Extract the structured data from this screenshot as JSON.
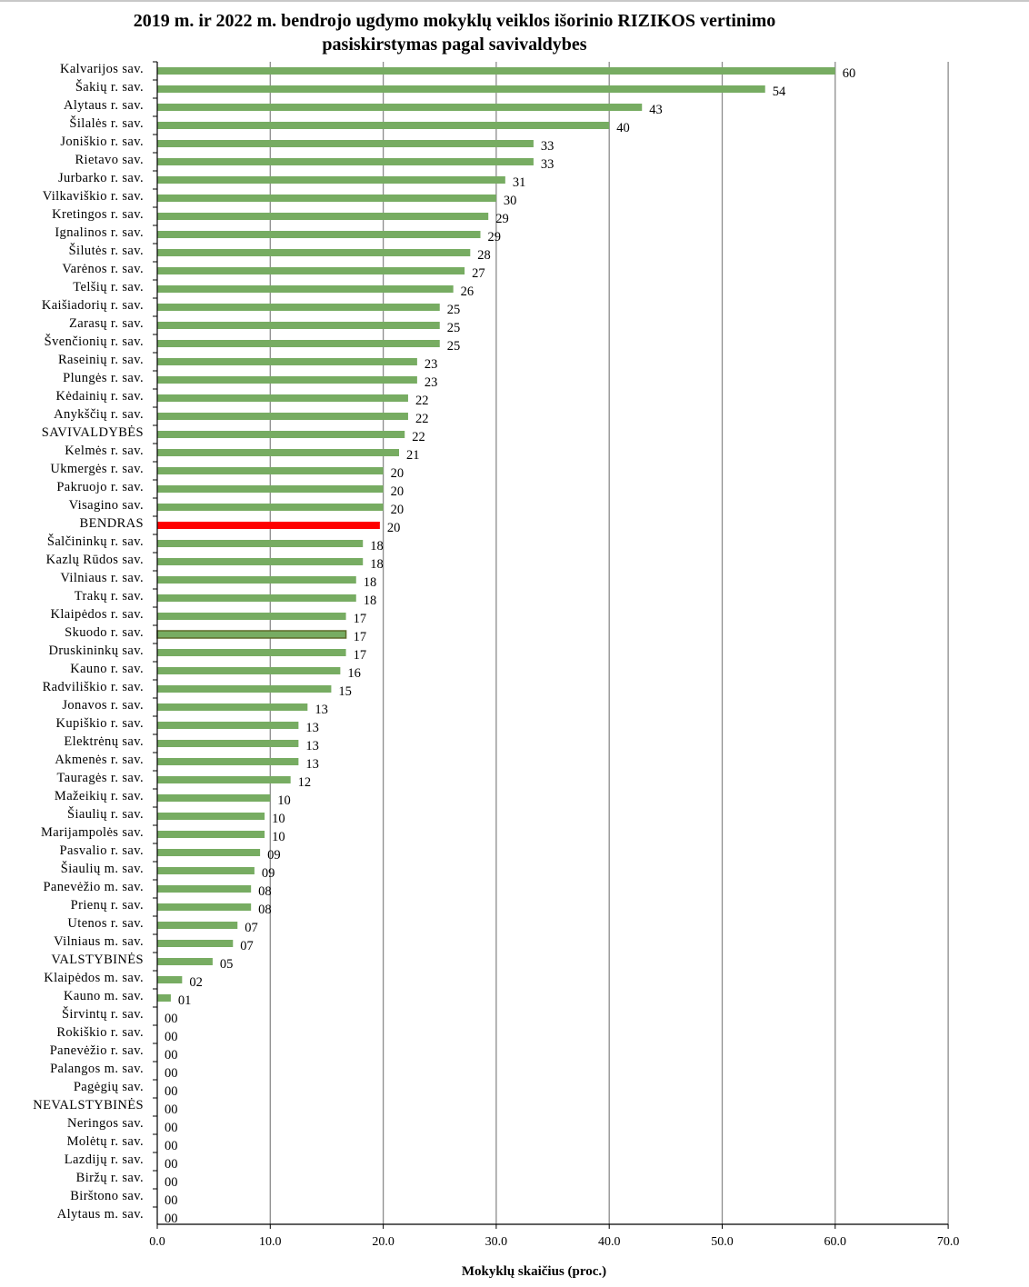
{
  "chart_data": {
    "type": "bar",
    "orientation": "horizontal",
    "title_line1": "2019 m. ir 2022 m. bendrojo ugdymo mokyklų veiklos išorinio RIZIKOS vertinimo",
    "title_line2": "pasiskirstymas pagal savivaldybes",
    "xlabel": "Mokyklų skaičius (proc.)",
    "ylabel": "",
    "xlim": [
      0,
      70
    ],
    "x_ticks": [
      "0.0",
      "10.0",
      "20.0",
      "30.0",
      "40.0",
      "50.0",
      "60.0",
      "70.0"
    ],
    "grid": "vertical",
    "legend": "none",
    "colors": {
      "default": "#77ac62",
      "highlight": "#fe0000",
      "outlined": "#77ac62",
      "outline": "#5e6b2a",
      "grid": "#8c8c8c"
    },
    "categories": [
      "Kalvarijos sav.",
      "Šakių r. sav.",
      "Alytaus r. sav.",
      "Šilalės r. sav.",
      "Joniškio r. sav.",
      "Rietavo sav.",
      "Jurbarko r. sav.",
      "Vilkaviškio r. sav.",
      "Kretingos r. sav.",
      "Ignalinos r. sav.",
      "Šilutės r. sav.",
      "Varėnos r. sav.",
      "Telšių r. sav.",
      "Kaišiadorių r. sav.",
      "Zarasų r. sav.",
      "Švenčionių r. sav.",
      "Raseinių r. sav.",
      "Plungės r. sav.",
      "Kėdainių r. sav.",
      "Anykščių r. sav.",
      "SAVIVALDYBĖS",
      "Kelmės r. sav.",
      "Ukmergės r. sav.",
      "Pakruojo r. sav.",
      "Visagino sav.",
      "BENDRAS",
      "Šalčininkų r. sav.",
      "Kazlų Rūdos sav.",
      "Vilniaus r. sav.",
      "Trakų r. sav.",
      "Klaipėdos r. sav.",
      "Skuodo r. sav.",
      "Druskininkų sav.",
      "Kauno r. sav.",
      "Radviliškio r. sav.",
      "Jonavos r. sav.",
      "Kupiškio r. sav.",
      "Elektrėnų sav.",
      "Akmenės r. sav.",
      "Tauragės r. sav.",
      "Mažeikių r. sav.",
      "Šiaulių r. sav.",
      "Marijampolės sav.",
      "Pasvalio r. sav.",
      "Šiaulių m. sav.",
      "Panevėžio m. sav.",
      "Prienų r. sav.",
      "Utenos r. sav.",
      "Vilniaus m. sav.",
      "VALSTYBINĖS",
      "Klaipėdos m. sav.",
      "Kauno m. sav.",
      "Širvintų r. sav.",
      "Rokiškio r. sav.",
      "Panevėžio r. sav.",
      "Palangos m. sav.",
      "Pagėgių sav.",
      "NEVALSTYBINĖS",
      "Neringos sav.",
      "Molėtų r. sav.",
      "Lazdijų r. sav.",
      "Biržų r. sav.",
      "Birštono sav.",
      "Alytaus m. sav."
    ],
    "values": [
      60.0,
      53.8,
      42.9,
      40.0,
      33.3,
      33.3,
      30.8,
      30.0,
      29.3,
      28.6,
      27.7,
      27.2,
      26.2,
      25.0,
      25.0,
      25.0,
      23.0,
      23.0,
      22.2,
      22.2,
      21.9,
      21.4,
      20.0,
      20.0,
      20.0,
      19.7,
      18.2,
      18.2,
      17.6,
      17.6,
      16.7,
      16.7,
      16.7,
      16.2,
      15.4,
      13.3,
      12.5,
      12.5,
      12.5,
      11.8,
      10.0,
      9.5,
      9.5,
      9.1,
      8.6,
      8.3,
      8.3,
      7.1,
      6.7,
      4.9,
      2.2,
      1.2,
      0,
      0,
      0,
      0,
      0,
      0,
      0,
      0,
      0,
      0,
      0,
      0
    ],
    "value_labels": [
      "60",
      "54",
      "43",
      "40",
      "33",
      "33",
      "31",
      "30",
      "29",
      "29",
      "28",
      "27",
      "26",
      "25",
      "25",
      "25",
      "23",
      "23",
      "22",
      "22",
      "22",
      "21",
      "20",
      "20",
      "20",
      "20",
      "18",
      "18",
      "18",
      "18",
      "17",
      "17",
      "17",
      "16",
      "15",
      "13",
      "13",
      "13",
      "13",
      "12",
      "10",
      "10",
      "10",
      "09",
      "09",
      "08",
      "08",
      "07",
      "07",
      "05",
      "02",
      "01",
      "00",
      "00",
      "00",
      "00",
      "00",
      "00",
      "00",
      "00",
      "00",
      "00",
      "00",
      "00"
    ],
    "highlighted": [
      "BENDRAS"
    ],
    "outlined": [
      "Skuodo r. sav."
    ]
  }
}
